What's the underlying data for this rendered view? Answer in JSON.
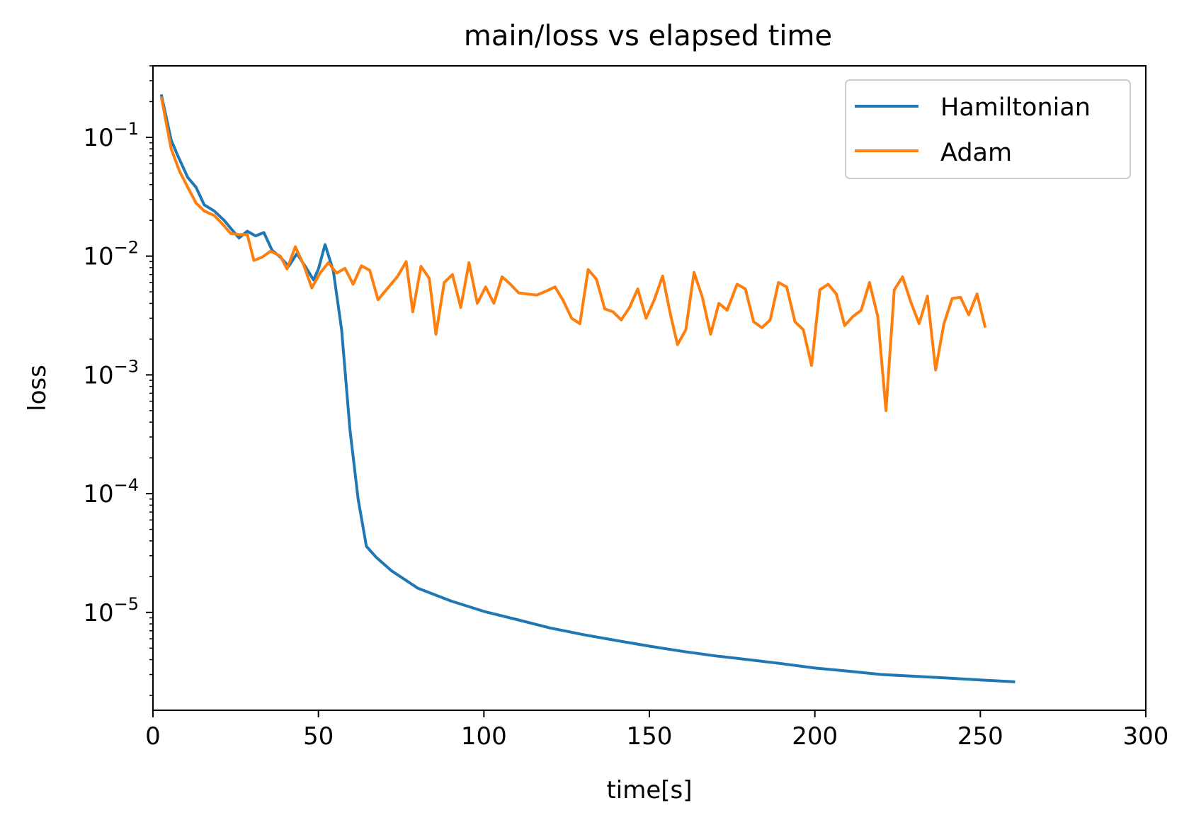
{
  "chart_data": {
    "type": "line",
    "title": "main/loss vs elapsed time",
    "xlabel": "time[s]",
    "ylabel": "loss",
    "xlim": [
      0,
      300
    ],
    "ylim": [
      1.5e-06,
      0.4
    ],
    "yscale": "log",
    "grid": false,
    "legend_position": "top-right",
    "x_ticks": [
      0,
      50,
      100,
      150,
      200,
      250,
      300
    ],
    "x_tick_labels": [
      "0",
      "50",
      "100",
      "150",
      "200",
      "250",
      "300"
    ],
    "y_ticks": [
      0.1,
      0.01,
      0.001,
      0.0001,
      1e-05
    ],
    "y_tick_labels": [
      {
        "base": "10",
        "exp": "−1"
      },
      {
        "base": "10",
        "exp": "−2"
      },
      {
        "base": "10",
        "exp": "−3"
      },
      {
        "base": "10",
        "exp": "−4"
      },
      {
        "base": "10",
        "exp": "−5"
      }
    ],
    "series": [
      {
        "name": "Hamiltonian",
        "color": "#1f77b4",
        "points": [
          [
            2.5,
            0.23
          ],
          [
            5.5,
            0.095
          ],
          [
            7.5,
            0.07
          ],
          [
            10.5,
            0.046
          ],
          [
            13,
            0.038
          ],
          [
            15.5,
            0.027
          ],
          [
            18.5,
            0.024
          ],
          [
            21.5,
            0.02
          ],
          [
            24,
            0.0165
          ],
          [
            26,
            0.0142
          ],
          [
            28.5,
            0.0162
          ],
          [
            31,
            0.0148
          ],
          [
            33.5,
            0.0158
          ],
          [
            36,
            0.0112
          ],
          [
            38.5,
            0.0098
          ],
          [
            41,
            0.0082
          ],
          [
            43.5,
            0.0105
          ],
          [
            46,
            0.0082
          ],
          [
            48.5,
            0.0063
          ],
          [
            50,
            0.0078
          ],
          [
            52,
            0.0125
          ],
          [
            54.5,
            0.0075
          ],
          [
            57,
            0.0024
          ],
          [
            59.5,
            0.00035
          ],
          [
            62,
            9e-05
          ],
          [
            64.5,
            3.6e-05
          ],
          [
            67.5,
            2.9e-05
          ],
          [
            72,
            2.25e-05
          ],
          [
            80,
            1.6e-05
          ],
          [
            90,
            1.25e-05
          ],
          [
            100,
            1.02e-05
          ],
          [
            110,
            8.7e-06
          ],
          [
            120,
            7.4e-06
          ],
          [
            130,
            6.5e-06
          ],
          [
            140,
            5.8e-06
          ],
          [
            150,
            5.2e-06
          ],
          [
            160,
            4.7e-06
          ],
          [
            170,
            4.3e-06
          ],
          [
            180,
            4e-06
          ],
          [
            190,
            3.7e-06
          ],
          [
            200,
            3.4e-06
          ],
          [
            210,
            3.2e-06
          ],
          [
            220,
            3e-06
          ],
          [
            230,
            2.9e-06
          ],
          [
            240,
            2.8e-06
          ],
          [
            250,
            2.7e-06
          ],
          [
            260.5,
            2.6e-06
          ]
        ]
      },
      {
        "name": "Adam",
        "color": "#ff7f0e",
        "points": [
          [
            2.5,
            0.22
          ],
          [
            5.5,
            0.08
          ],
          [
            8,
            0.052
          ],
          [
            10.5,
            0.038
          ],
          [
            13,
            0.028
          ],
          [
            15.5,
            0.024
          ],
          [
            18.5,
            0.022
          ],
          [
            21.5,
            0.018
          ],
          [
            23.5,
            0.0155
          ],
          [
            26,
            0.0152
          ],
          [
            28.5,
            0.0152
          ],
          [
            30.5,
            0.0092
          ],
          [
            33,
            0.0098
          ],
          [
            35.5,
            0.011
          ],
          [
            38.5,
            0.01
          ],
          [
            40.5,
            0.0078
          ],
          [
            43,
            0.012
          ],
          [
            45.5,
            0.0085
          ],
          [
            48,
            0.0054
          ],
          [
            50.5,
            0.0072
          ],
          [
            53,
            0.0088
          ],
          [
            55.5,
            0.0072
          ],
          [
            58,
            0.0079
          ],
          [
            60.5,
            0.0058
          ],
          [
            63,
            0.0083
          ],
          [
            65.5,
            0.0076
          ],
          [
            68,
            0.0043
          ],
          [
            71,
            0.0054
          ],
          [
            74,
            0.0068
          ],
          [
            76.5,
            0.009
          ],
          [
            78.5,
            0.0034
          ],
          [
            81,
            0.0082
          ],
          [
            83.5,
            0.0065
          ],
          [
            85.5,
            0.0022
          ],
          [
            88,
            0.006
          ],
          [
            90.5,
            0.007
          ],
          [
            93,
            0.0037
          ],
          [
            95.5,
            0.0088
          ],
          [
            98,
            0.004
          ],
          [
            100.5,
            0.0055
          ],
          [
            103,
            0.004
          ],
          [
            105.5,
            0.0067
          ],
          [
            108,
            0.0058
          ],
          [
            110.5,
            0.0049
          ],
          [
            113,
            0.0048
          ],
          [
            116,
            0.0047
          ],
          [
            119,
            0.0051
          ],
          [
            121.5,
            0.0055
          ],
          [
            124,
            0.0042
          ],
          [
            126.5,
            0.003
          ],
          [
            129,
            0.0027
          ],
          [
            131.5,
            0.0077
          ],
          [
            134,
            0.0064
          ],
          [
            136.5,
            0.0036
          ],
          [
            139,
            0.0034
          ],
          [
            141.5,
            0.0029
          ],
          [
            144,
            0.0037
          ],
          [
            146.5,
            0.0053
          ],
          [
            149,
            0.003
          ],
          [
            151.5,
            0.0043
          ],
          [
            154,
            0.0068
          ],
          [
            156.5,
            0.0031
          ],
          [
            158.5,
            0.0018
          ],
          [
            161,
            0.0024
          ],
          [
            163.5,
            0.0073
          ],
          [
            166,
            0.0045
          ],
          [
            168.5,
            0.0022
          ],
          [
            171,
            0.004
          ],
          [
            173.5,
            0.0035
          ],
          [
            176.5,
            0.0058
          ],
          [
            179,
            0.0053
          ],
          [
            181.5,
            0.0028
          ],
          [
            184,
            0.0025
          ],
          [
            186.5,
            0.0029
          ],
          [
            189,
            0.006
          ],
          [
            191.5,
            0.0055
          ],
          [
            194,
            0.0028
          ],
          [
            196.5,
            0.0024
          ],
          [
            199,
            0.0012
          ],
          [
            201.5,
            0.0052
          ],
          [
            204,
            0.0058
          ],
          [
            206.5,
            0.0048
          ],
          [
            209,
            0.0026
          ],
          [
            211.5,
            0.0031
          ],
          [
            214,
            0.0035
          ],
          [
            216.5,
            0.006
          ],
          [
            219,
            0.0031
          ],
          [
            221.5,
            0.0005
          ],
          [
            224,
            0.0052
          ],
          [
            226.5,
            0.0067
          ],
          [
            229,
            0.0041
          ],
          [
            231.5,
            0.0027
          ],
          [
            234,
            0.0046
          ],
          [
            236.5,
            0.0011
          ],
          [
            239,
            0.0027
          ],
          [
            241.5,
            0.0044
          ],
          [
            244,
            0.0045
          ],
          [
            246.5,
            0.0032
          ],
          [
            249,
            0.0048
          ],
          [
            251.5,
            0.0025
          ]
        ]
      }
    ]
  }
}
